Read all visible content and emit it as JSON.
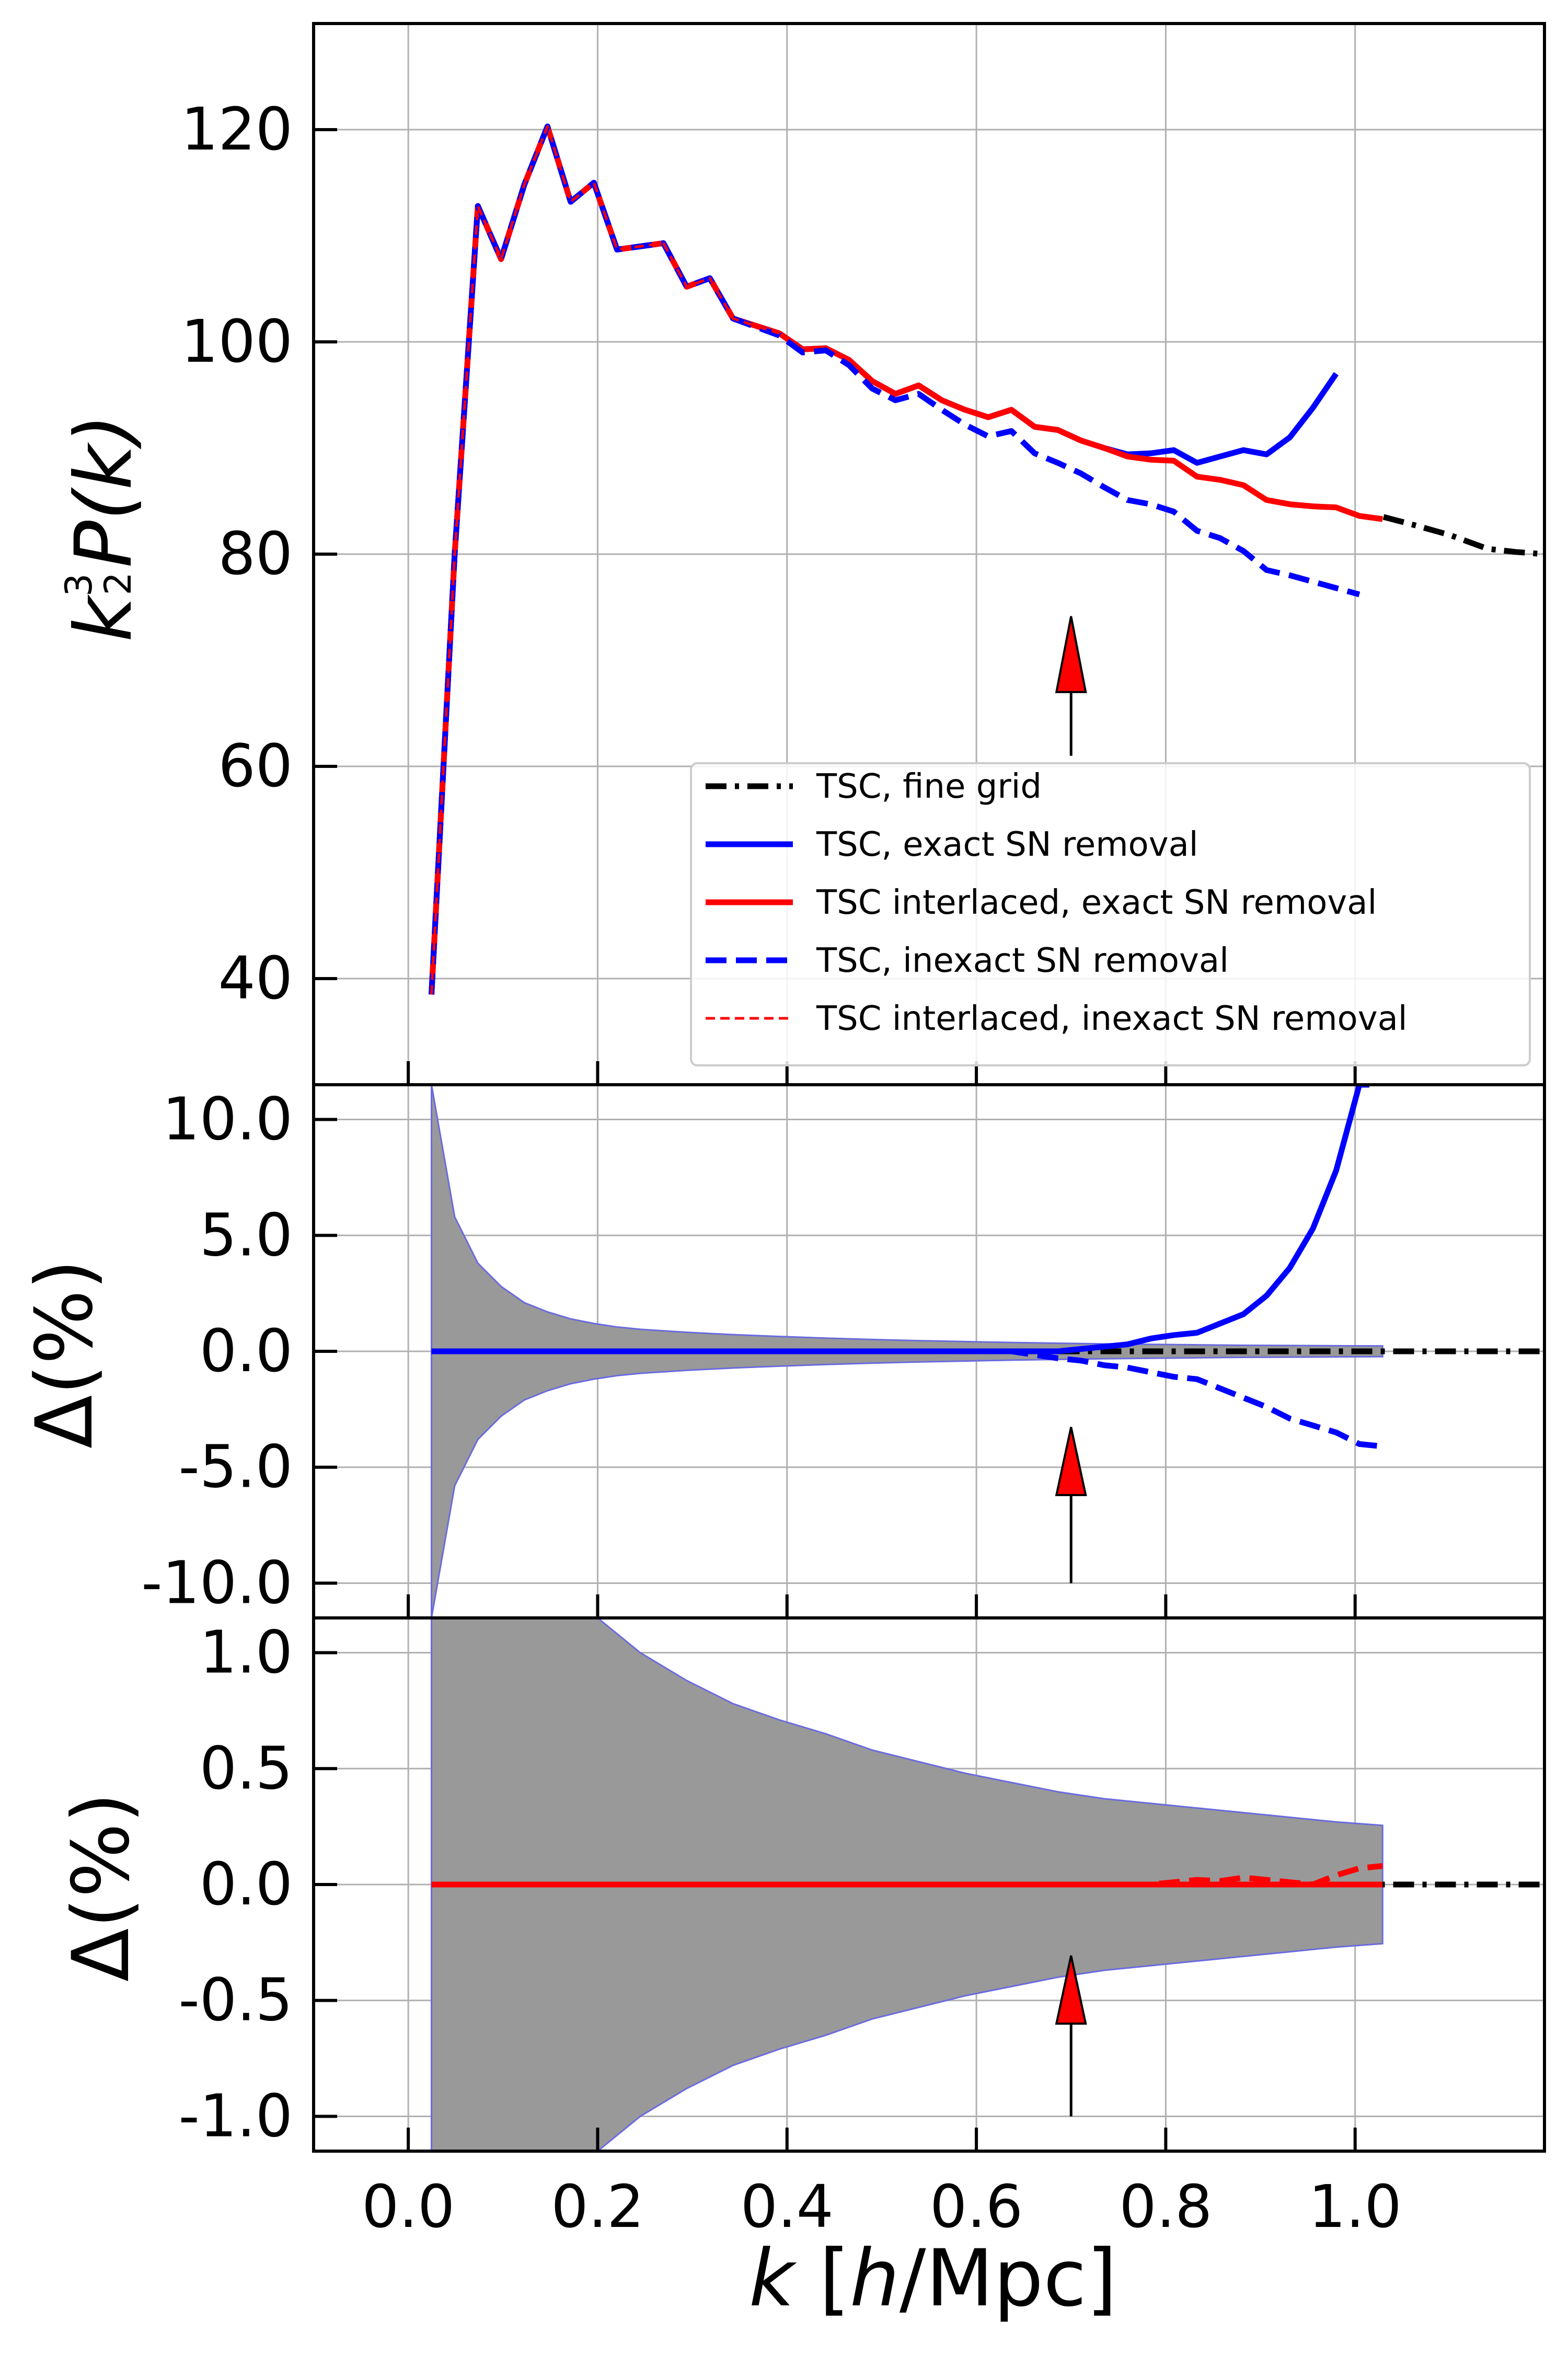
{
  "chart_data": [
    {
      "type": "line",
      "panel": "top",
      "ylabel": "k^(3/2) P(k)",
      "xlim": [
        -0.1,
        1.2
      ],
      "ylim": [
        30,
        130
      ],
      "grid": true,
      "legend_position": "lower-right",
      "yticks": [
        {
          "value": 40,
          "label": "40"
        },
        {
          "value": 60,
          "label": "60"
        },
        {
          "value": 80,
          "label": "80"
        },
        {
          "value": 100,
          "label": "100"
        },
        {
          "value": 120,
          "label": "120"
        }
      ],
      "series": [
        {
          "name": "TSC, fine grid",
          "color": "#000000",
          "style": "dashdot",
          "x": [
            1.03,
            1.06,
            1.1,
            1.14,
            1.17,
            1.2
          ],
          "y": [
            83.5,
            82.8,
            81.8,
            80.5,
            80.2,
            80.0
          ]
        },
        {
          "name": "TSC, exact SN removal",
          "color": "#0000ff",
          "style": "solid",
          "x": [
            0.0245,
            0.049,
            0.0735,
            0.098,
            0.1225,
            0.147,
            0.1715,
            0.196,
            0.2205,
            0.245,
            0.2695,
            0.294,
            0.3185,
            0.343,
            0.3675,
            0.392,
            0.4165,
            0.441,
            0.4655,
            0.49,
            0.5145,
            0.539,
            0.5635,
            0.588,
            0.6125,
            0.637,
            0.6615,
            0.686,
            0.7105,
            0.735,
            0.7595,
            0.784,
            0.8085,
            0.833,
            0.8575,
            0.882,
            0.9065,
            0.931,
            0.9555,
            0.98,
            1.0045,
            1.029
          ],
          "y": [
            38.5,
            80.0,
            112.8,
            107.8,
            114.8,
            120.3,
            113.2,
            115.0,
            108.7,
            109.0,
            109.3,
            105.2,
            106.0,
            102.2,
            101.5,
            100.8,
            99.3,
            99.4,
            98.3,
            96.3,
            95.1,
            95.9,
            94.5,
            93.6,
            92.9,
            93.6,
            92.0,
            91.7,
            90.7,
            90.0,
            89.4,
            89.5,
            89.8,
            88.6,
            89.2,
            89.8,
            89.4,
            91.0,
            93.8,
            97.0,
            null,
            null
          ]
        },
        {
          "name": "TSC interlaced, exact SN removal",
          "color": "#ff0000",
          "style": "solid",
          "x": [
            0.0245,
            0.049,
            0.0735,
            0.098,
            0.1225,
            0.147,
            0.1715,
            0.196,
            0.2205,
            0.245,
            0.2695,
            0.294,
            0.3185,
            0.343,
            0.3675,
            0.392,
            0.4165,
            0.441,
            0.4655,
            0.49,
            0.5145,
            0.539,
            0.5635,
            0.588,
            0.6125,
            0.637,
            0.6615,
            0.686,
            0.7105,
            0.735,
            0.7595,
            0.784,
            0.8085,
            0.833,
            0.8575,
            0.882,
            0.9065,
            0.931,
            0.9555,
            0.98,
            1.0045,
            1.029
          ],
          "y": [
            38.5,
            80.0,
            112.8,
            107.8,
            114.8,
            120.3,
            113.2,
            115.0,
            108.7,
            109.0,
            109.3,
            105.2,
            106.0,
            102.2,
            101.5,
            100.8,
            99.3,
            99.4,
            98.3,
            96.3,
            95.1,
            95.9,
            94.5,
            93.6,
            92.9,
            93.6,
            92.0,
            91.7,
            90.7,
            90.0,
            89.2,
            88.9,
            88.8,
            87.3,
            87.0,
            86.5,
            85.1,
            84.7,
            84.5,
            84.4,
            83.6,
            83.3
          ]
        },
        {
          "name": "TSC, inexact SN removal",
          "color": "#0000ff",
          "style": "dashed",
          "x": [
            0.0245,
            0.049,
            0.0735,
            0.098,
            0.1225,
            0.147,
            0.1715,
            0.196,
            0.2205,
            0.245,
            0.2695,
            0.294,
            0.3185,
            0.343,
            0.3675,
            0.392,
            0.4165,
            0.441,
            0.4655,
            0.49,
            0.5145,
            0.539,
            0.5635,
            0.588,
            0.6125,
            0.637,
            0.6615,
            0.686,
            0.7105,
            0.735,
            0.7595,
            0.784,
            0.8085,
            0.833,
            0.8575,
            0.882,
            0.9065,
            0.931,
            0.9555,
            0.98,
            1.0045,
            1.029
          ],
          "y": [
            38.5,
            80.0,
            112.8,
            107.8,
            114.8,
            120.3,
            113.2,
            115.0,
            108.7,
            109.0,
            109.3,
            105.2,
            106.0,
            102.2,
            101.4,
            100.6,
            99.0,
            99.2,
            97.8,
            95.6,
            94.5,
            95.1,
            93.6,
            92.2,
            91.1,
            91.6,
            89.5,
            88.6,
            87.6,
            86.3,
            85.1,
            84.7,
            84.0,
            82.2,
            81.5,
            80.3,
            78.5,
            78.0,
            77.4,
            76.8,
            76.2,
            null
          ]
        },
        {
          "name": "TSC interlaced, inexact SN removal",
          "color": "#ff0000",
          "style": "dashed-thin",
          "x": [
            0.0245,
            0.049,
            0.0735,
            0.098,
            0.1225,
            0.147,
            0.1715,
            0.196,
            0.2205,
            0.245,
            0.2695,
            0.294,
            0.3185,
            0.343,
            0.3675,
            0.392
          ],
          "y": [
            38.5,
            80.0,
            112.8,
            107.8,
            114.8,
            120.3,
            113.2,
            115.0,
            108.7,
            109.0,
            109.3,
            105.2,
            106.0,
            102.2,
            101.5,
            100.8
          ]
        }
      ],
      "annotations": [
        {
          "type": "arrow",
          "x": 0.7,
          "y_from": 61,
          "y_to": 67,
          "color": "#ff0000"
        }
      ]
    },
    {
      "type": "line",
      "panel": "middle",
      "ylabel": "Δ(%)",
      "xlim": [
        -0.1,
        1.2
      ],
      "ylim": [
        -11.5,
        11.5
      ],
      "grid": true,
      "yticks": [
        {
          "value": -10,
          "label": "-10.0"
        },
        {
          "value": -5,
          "label": "-5.0"
        },
        {
          "value": 0,
          "label": "0.0"
        },
        {
          "value": 5,
          "label": "5.0"
        },
        {
          "value": 10,
          "label": "10.0"
        }
      ],
      "band": {
        "x": [
          0.0245,
          0.049,
          0.0735,
          0.098,
          0.1225,
          0.147,
          0.1715,
          0.196,
          0.2205,
          0.245,
          0.294,
          0.343,
          0.392,
          0.441,
          0.49,
          0.539,
          0.588,
          0.637,
          0.686,
          0.735,
          0.784,
          0.833,
          0.882,
          0.931,
          0.98,
          1.029
        ],
        "upper": [
          11.5,
          5.8,
          3.8,
          2.8,
          2.1,
          1.7,
          1.4,
          1.2,
          1.05,
          0.95,
          0.82,
          0.72,
          0.64,
          0.57,
          0.51,
          0.46,
          0.42,
          0.38,
          0.35,
          0.32,
          0.3,
          0.28,
          0.26,
          0.25,
          0.24,
          0.23
        ]
      },
      "series": [
        {
          "name": "TSC, fine grid",
          "color": "#000000",
          "style": "dashdot",
          "x": [
            0.0245,
            1.2
          ],
          "y": [
            0.0,
            0.0
          ]
        },
        {
          "name": "TSC, exact SN removal",
          "color": "#0000ff",
          "style": "solid",
          "x": [
            0.0245,
            0.686,
            0.735,
            0.7595,
            0.784,
            0.8085,
            0.833,
            0.8575,
            0.882,
            0.9065,
            0.931,
            0.9555,
            0.98,
            1.0045,
            1.015
          ],
          "y": [
            0.0,
            0.0,
            0.2,
            0.3,
            0.55,
            0.7,
            0.8,
            1.2,
            1.6,
            2.4,
            3.6,
            5.3,
            7.8,
            11.5,
            11.5
          ]
        },
        {
          "name": "TSC, inexact SN removal",
          "color": "#0000ff",
          "style": "dashed",
          "x": [
            0.0245,
            0.637,
            0.686,
            0.7105,
            0.735,
            0.7595,
            0.784,
            0.8085,
            0.833,
            0.8575,
            0.882,
            0.9065,
            0.931,
            0.9555,
            0.98,
            1.0045,
            1.029
          ],
          "y": [
            0.0,
            0.0,
            -0.3,
            -0.4,
            -0.6,
            -0.7,
            -0.9,
            -1.1,
            -1.2,
            -1.6,
            -2.0,
            -2.4,
            -2.9,
            -3.2,
            -3.5,
            -4.0,
            -4.1
          ]
        }
      ],
      "annotations": [
        {
          "type": "arrow",
          "x": 0.7,
          "y_from": -10,
          "y_to": -6.2,
          "color": "#ff0000"
        }
      ]
    },
    {
      "type": "line",
      "panel": "bottom",
      "ylabel": "Δ(%)",
      "xlabel": "k [h/Mpc]",
      "xlim": [
        -0.1,
        1.2
      ],
      "ylim": [
        -1.15,
        1.15
      ],
      "grid": true,
      "xticks": [
        {
          "value": 0.0,
          "label": "0.0"
        },
        {
          "value": 0.2,
          "label": "0.2"
        },
        {
          "value": 0.4,
          "label": "0.4"
        },
        {
          "value": 0.6,
          "label": "0.6"
        },
        {
          "value": 0.8,
          "label": "0.8"
        },
        {
          "value": 1.0,
          "label": "1.0"
        }
      ],
      "yticks": [
        {
          "value": -1.0,
          "label": "-1.0"
        },
        {
          "value": -0.5,
          "label": "-0.5"
        },
        {
          "value": 0.0,
          "label": "0.0"
        },
        {
          "value": 0.5,
          "label": "0.5"
        },
        {
          "value": 1.0,
          "label": "1.0"
        }
      ],
      "band": {
        "x": [
          0.0245,
          0.16,
          0.2,
          0.245,
          0.294,
          0.343,
          0.392,
          0.441,
          0.49,
          0.539,
          0.588,
          0.637,
          0.686,
          0.735,
          0.784,
          0.833,
          0.882,
          0.931,
          0.98,
          1.029
        ],
        "upper": [
          1.15,
          1.15,
          1.15,
          1.0,
          0.88,
          0.78,
          0.71,
          0.65,
          0.58,
          0.53,
          0.48,
          0.44,
          0.4,
          0.37,
          0.35,
          0.33,
          0.31,
          0.29,
          0.27,
          0.255
        ]
      },
      "series": [
        {
          "name": "TSC, fine grid",
          "color": "#000000",
          "style": "dashdot",
          "x": [
            0.0245,
            1.2
          ],
          "y": [
            0.0,
            0.0
          ]
        },
        {
          "name": "TSC interlaced, exact SN removal",
          "color": "#ff0000",
          "style": "solid",
          "x": [
            0.0245,
            1.029
          ],
          "y": [
            0.0,
            0.0
          ]
        },
        {
          "name": "TSC interlaced, inexact SN removal",
          "color": "#ff0000",
          "style": "dashed",
          "x": [
            0.0245,
            0.735,
            0.784,
            0.8085,
            0.833,
            0.8575,
            0.882,
            0.9065,
            0.931,
            0.9555,
            0.98,
            1.0045,
            1.029
          ],
          "y": [
            0.0,
            0.0,
            0.0,
            0.01,
            0.02,
            0.015,
            0.03,
            0.02,
            0.01,
            0.0,
            0.04,
            0.07,
            0.08
          ]
        }
      ],
      "annotations": [
        {
          "type": "arrow",
          "x": 0.7,
          "y_from": -1.0,
          "y_to": -0.6,
          "color": "#ff0000"
        }
      ]
    }
  ],
  "labels": {
    "top_ylabel_base": "k",
    "top_ylabel_exp_num": "3",
    "top_ylabel_exp_den": "2",
    "top_ylabel_rest": "P(k)",
    "delta_ylabel": "Δ(%)",
    "xlabel_k": "k",
    "xlabel_open": " [",
    "xlabel_h": "h",
    "xlabel_rest": "/Mpc]"
  },
  "legend": [
    {
      "label": "TSC, fine grid",
      "color": "#000000",
      "style": "dashdot"
    },
    {
      "label": "TSC, exact SN removal",
      "color": "#0000ff",
      "style": "solid"
    },
    {
      "label": "TSC interlaced, exact SN removal",
      "color": "#ff0000",
      "style": "solid"
    },
    {
      "label": "TSC, inexact SN removal",
      "color": "#0000ff",
      "style": "dashed"
    },
    {
      "label": "TSC interlaced, inexact SN removal",
      "color": "#ff0000",
      "style": "dashed-thin"
    }
  ]
}
